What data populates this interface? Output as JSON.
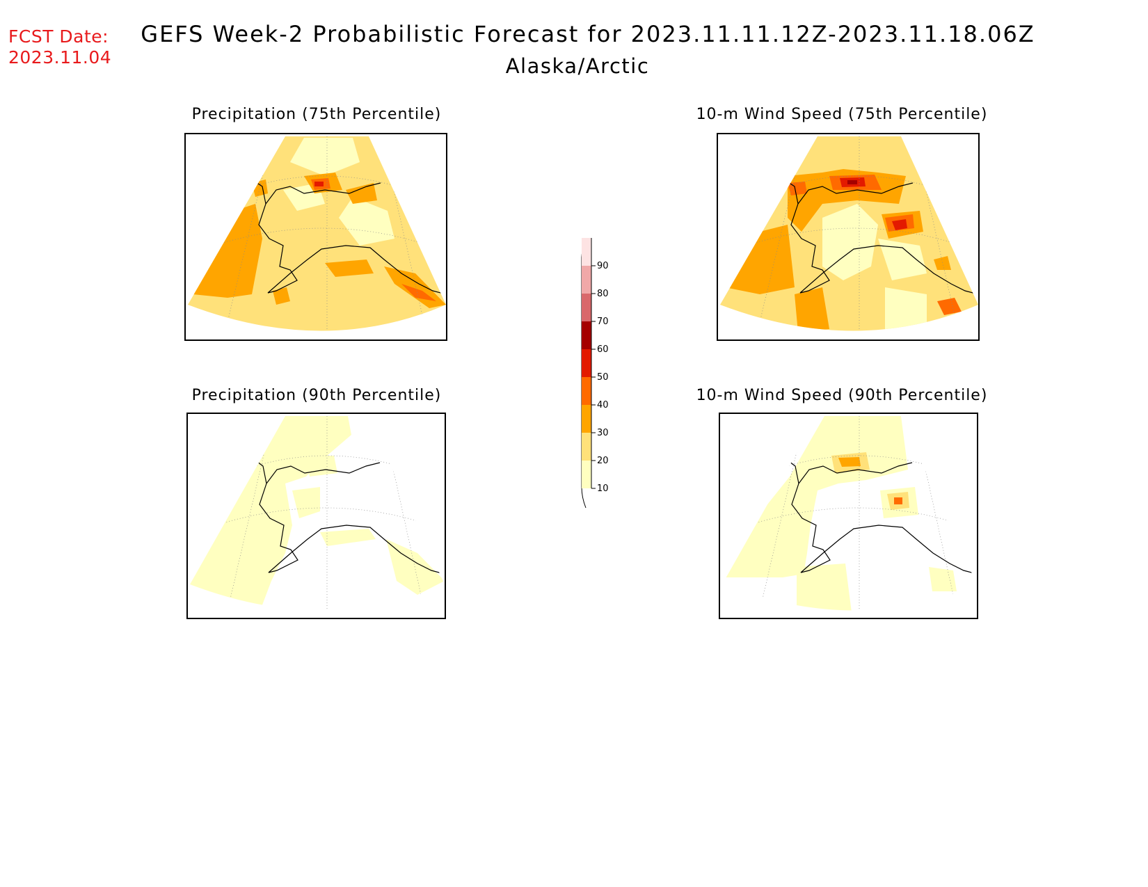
{
  "header": {
    "fcst_label": "FCST Date:",
    "fcst_date": "2023.11.04",
    "title": "GEFS Week-2 Probabilistic Forecast for 2023.11.11.12Z-2023.11.18.06Z",
    "subtitle": "Alaska/Arctic"
  },
  "panels": [
    {
      "id": "precip75",
      "title": "Precipitation (75th Percentile)"
    },
    {
      "id": "wind75",
      "title": "10-m Wind Speed (75th Percentile)"
    },
    {
      "id": "precip90",
      "title": "Precipitation (90th Percentile)"
    },
    {
      "id": "wind90",
      "title": "10-m Wind Speed (90th Percentile)"
    }
  ],
  "colorbar": {
    "levels": [
      "10",
      "20",
      "30",
      "40",
      "50",
      "60",
      "70",
      "80",
      "90"
    ],
    "colors": [
      "#ffffc0",
      "#ffe17a",
      "#ffa500",
      "#ff6a00",
      "#e31a00",
      "#a50000",
      "#d9686b",
      "#f0a8a8",
      "#fde3e3"
    ]
  },
  "palette": {
    "p10": "#ffffc0",
    "p20": "#ffe17a",
    "p30": "#ffa500",
    "p40": "#ff6a00",
    "p50": "#e31a00",
    "coast": "#000000",
    "title_red": "#e8191b"
  }
}
